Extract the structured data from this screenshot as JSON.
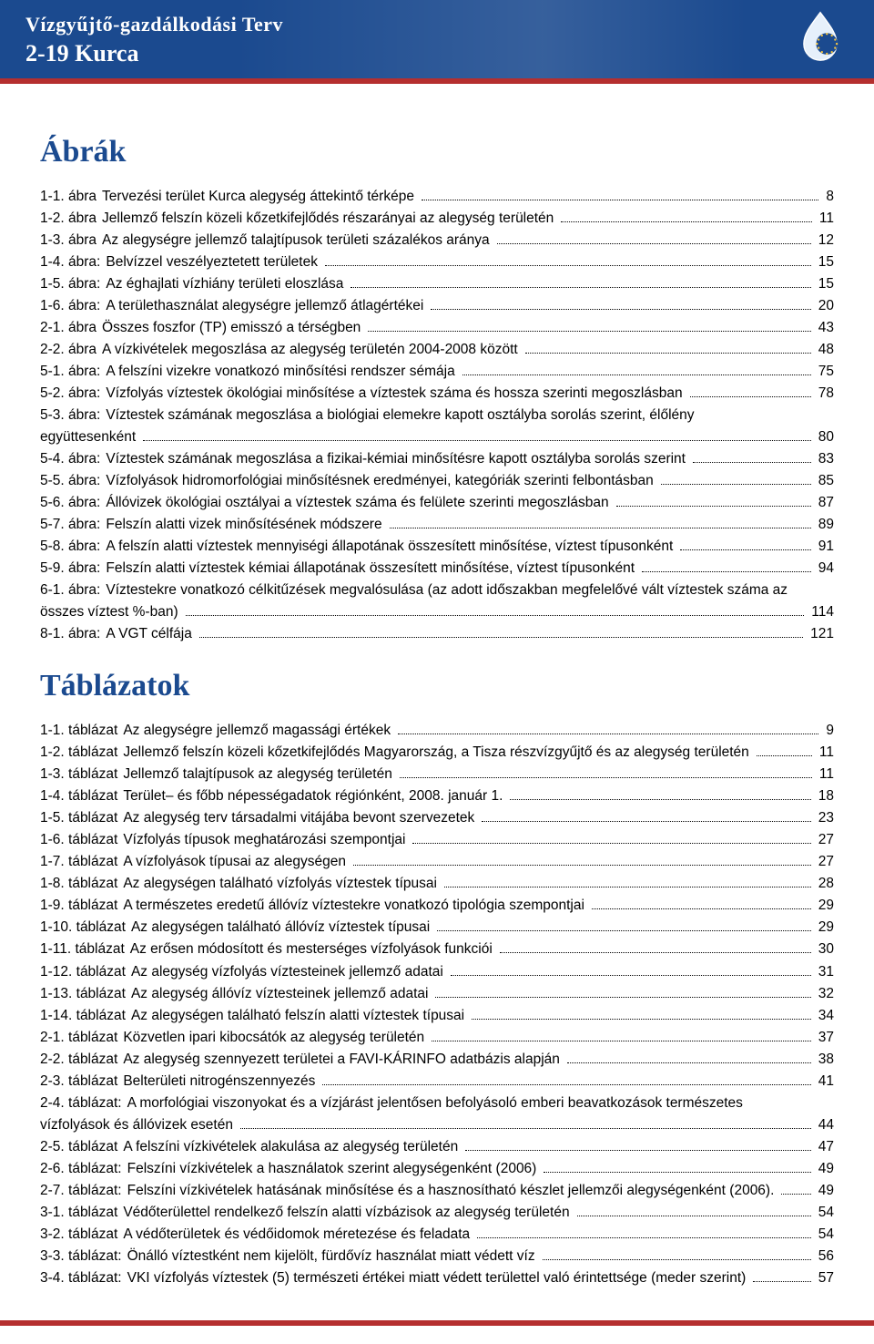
{
  "colors": {
    "header_bg": "#1b4a8f",
    "header_text": "#ffffff",
    "strip": "#b52f2f",
    "section_title": "#1b4a8f",
    "body_text": "#000000",
    "page_bg": "#ffffff"
  },
  "typography": {
    "header_title_pt": 17,
    "header_sub_pt": 20,
    "section_title_pt": 26,
    "body_pt": 12
  },
  "header": {
    "title": "Vízgyűjtő-gazdálkodási Terv",
    "subtitle": "2-19 Kurca"
  },
  "sections": {
    "abrak": {
      "title": "Ábrák",
      "items": [
        {
          "ref": "1-1. ábra",
          "label": "Tervezési terület Kurca alegység áttekintő térképe",
          "page": "8"
        },
        {
          "ref": "1-2. ábra",
          "label": "Jellemző felszín közeli kőzetkifejlődés részarányai az alegység területén",
          "page": "11"
        },
        {
          "ref": "1-3. ábra",
          "label": "Az alegységre jellemző talajtípusok területi százalékos aránya",
          "page": "12"
        },
        {
          "ref": "1-4. ábra:",
          "label": "Belvízzel veszélyeztetett területek",
          "page": "15"
        },
        {
          "ref": "1-5. ábra:",
          "label": "Az éghajlati vízhiány területi eloszlása",
          "page": "15"
        },
        {
          "ref": "1-6. ábra:",
          "label": "A területhasználat alegységre jellemző átlagértékei",
          "page": "20"
        },
        {
          "ref": "2-1. ábra",
          "label": "Összes foszfor (TP) emisszó a térségben",
          "page": "43"
        },
        {
          "ref": "2-2. ábra",
          "label": "A vízkivételek megoszlása az alegység területén 2004-2008 között",
          "page": "48"
        },
        {
          "ref": "5-1. ábra:",
          "label": "A felszíni vizekre vonatkozó minősítési rendszer sémája",
          "page": "75"
        },
        {
          "ref": "5-2. ábra:",
          "label": "Vízfolyás víztestek ökológiai minősítése a víztestek száma és hossza szerinti megoszlásban",
          "page": "78"
        },
        {
          "ref": "5-3. ábra:",
          "label_a": "Víztestek számának megoszlása a biológiai elemekre kapott osztályba sorolás szerint, élőlény",
          "label_b": "együttesenként",
          "page": "80",
          "wrap": true
        },
        {
          "ref": "5-4. ábra:",
          "label": "Víztestek számának megoszlása a fizikai-kémiai minősítésre kapott osztályba sorolás szerint",
          "page": "83"
        },
        {
          "ref": "5-5. ábra:",
          "label": "Vízfolyások hidromorfológiai minősítésnek eredményei, kategóriák szerinti felbontásban",
          "page": "85"
        },
        {
          "ref": "5-6. ábra:",
          "label": "Állóvizek ökológiai osztályai a víztestek száma és felülete szerinti megoszlásban",
          "page": "87"
        },
        {
          "ref": "5-7. ábra:",
          "label": "Felszín alatti vizek minősítésének módszere",
          "page": "89"
        },
        {
          "ref": "5-8. ábra:",
          "label": "A felszín alatti víztestek mennyiségi állapotának összesített minősítése, víztest típusonként",
          "page": "91"
        },
        {
          "ref": "5-9. ábra:",
          "label": "Felszín alatti víztestek kémiai állapotának összesített minősítése, víztest típusonként",
          "page": "94"
        },
        {
          "ref": "6-1. ábra:",
          "label_a": "Víztestekre vonatkozó célkitűzések megvalósulása (az adott időszakban megfelelővé vált víztestek száma az",
          "label_b": "összes víztest %-ban)",
          "page": "114",
          "wrap": true
        },
        {
          "ref": "8-1. ábra:",
          "label": "A VGT célfája",
          "page": "121"
        }
      ]
    },
    "tablazatok": {
      "title": "Táblázatok",
      "items": [
        {
          "ref": "1-1. táblázat",
          "label": "Az alegységre jellemző magassági értékek",
          "page": "9"
        },
        {
          "ref": "1-2. táblázat",
          "label": "Jellemző felszín közeli kőzetkifejlődés Magyarország, a Tisza részvízgyűjtő és az alegység területén",
          "page": "11"
        },
        {
          "ref": "1-3. táblázat",
          "label": "Jellemző talajtípusok az alegység területén",
          "page": "11"
        },
        {
          "ref": "1-4. táblázat",
          "label": "Terület– és főbb népességadatok régiónként, 2008. január 1.",
          "page": "18"
        },
        {
          "ref": "1-5. táblázat",
          "label": "Az alegység terv társadalmi vitájába bevont szervezetek",
          "page": "23"
        },
        {
          "ref": "1-6. táblázat",
          "label": "Vízfolyás típusok meghatározási szempontjai",
          "page": "27"
        },
        {
          "ref": "1-7. táblázat",
          "label": "A vízfolyások típusai az alegységen",
          "page": "27"
        },
        {
          "ref": "1-8. táblázat",
          "label": "Az alegységen található vízfolyás víztestek típusai",
          "page": "28"
        },
        {
          "ref": "1-9. táblázat",
          "label": "A természetes eredetű állóvíz víztestekre vonatkozó tipológia szempontjai",
          "page": "29"
        },
        {
          "ref": "1-10. táblázat",
          "label": "Az alegységen található állóvíz víztestek típusai",
          "page": "29"
        },
        {
          "ref": "1-11. táblázat",
          "label": "Az erősen módosított és mesterséges vízfolyások funkciói",
          "page": "30"
        },
        {
          "ref": "1-12. táblázat",
          "label": "Az alegység vízfolyás víztesteinek jellemző adatai",
          "page": "31"
        },
        {
          "ref": "1-13. táblázat",
          "label": "Az alegység állóvíz víztesteinek jellemző adatai",
          "page": "32"
        },
        {
          "ref": "1-14. táblázat",
          "label": "Az alegységen található felszín alatti víztestek típusai",
          "page": "34"
        },
        {
          "ref": "2-1. táblázat",
          "label": "Közvetlen ipari kibocsátók az alegység területén",
          "page": "37"
        },
        {
          "ref": "2-2. táblázat",
          "label": "Az alegység szennyezett területei a FAVI-KÁRINFO adatbázis alapján",
          "page": "38"
        },
        {
          "ref": "2-3. táblázat",
          "label": "Belterületi nitrogénszennyezés",
          "page": "41"
        },
        {
          "ref": "2-4. táblázat:",
          "label_a": "A morfológiai viszonyokat és a vízjárást jelentősen befolyásoló emberi beavatkozások természetes",
          "label_b": "vízfolyások és állóvizek esetén",
          "page": "44",
          "wrap": true
        },
        {
          "ref": "2-5. táblázat",
          "label": "A felszíni vízkivételek alakulása az alegység területén",
          "page": "47"
        },
        {
          "ref": "2-6. táblázat:",
          "label": "Felszíni vízkivételek a használatok szerint alegységenként (2006)",
          "page": "49"
        },
        {
          "ref": "2-7. táblázat:",
          "label": "Felszíni vízkivételek hatásának minősítése és a hasznosítható készlet jellemzői alegységenként (2006).",
          "page": "49"
        },
        {
          "ref": "3-1. táblázat",
          "label": "Védőterülettel rendelkező felszín alatti vízbázisok az alegység területén",
          "page": "54"
        },
        {
          "ref": "3-2. táblázat",
          "label": "A védőterületek és védőidomok méretezése és feladata",
          "page": "54"
        },
        {
          "ref": "3-3. táblázat:",
          "label": "Önálló víztestként nem kijelölt, fürdővíz használat miatt védett víz",
          "page": "56"
        },
        {
          "ref": "3-4. táblázat:",
          "label": "VKI vízfolyás víztestek (5) természeti értékei miatt védett területtel való érintettsége (meder szerint)",
          "page": "57"
        }
      ]
    }
  }
}
